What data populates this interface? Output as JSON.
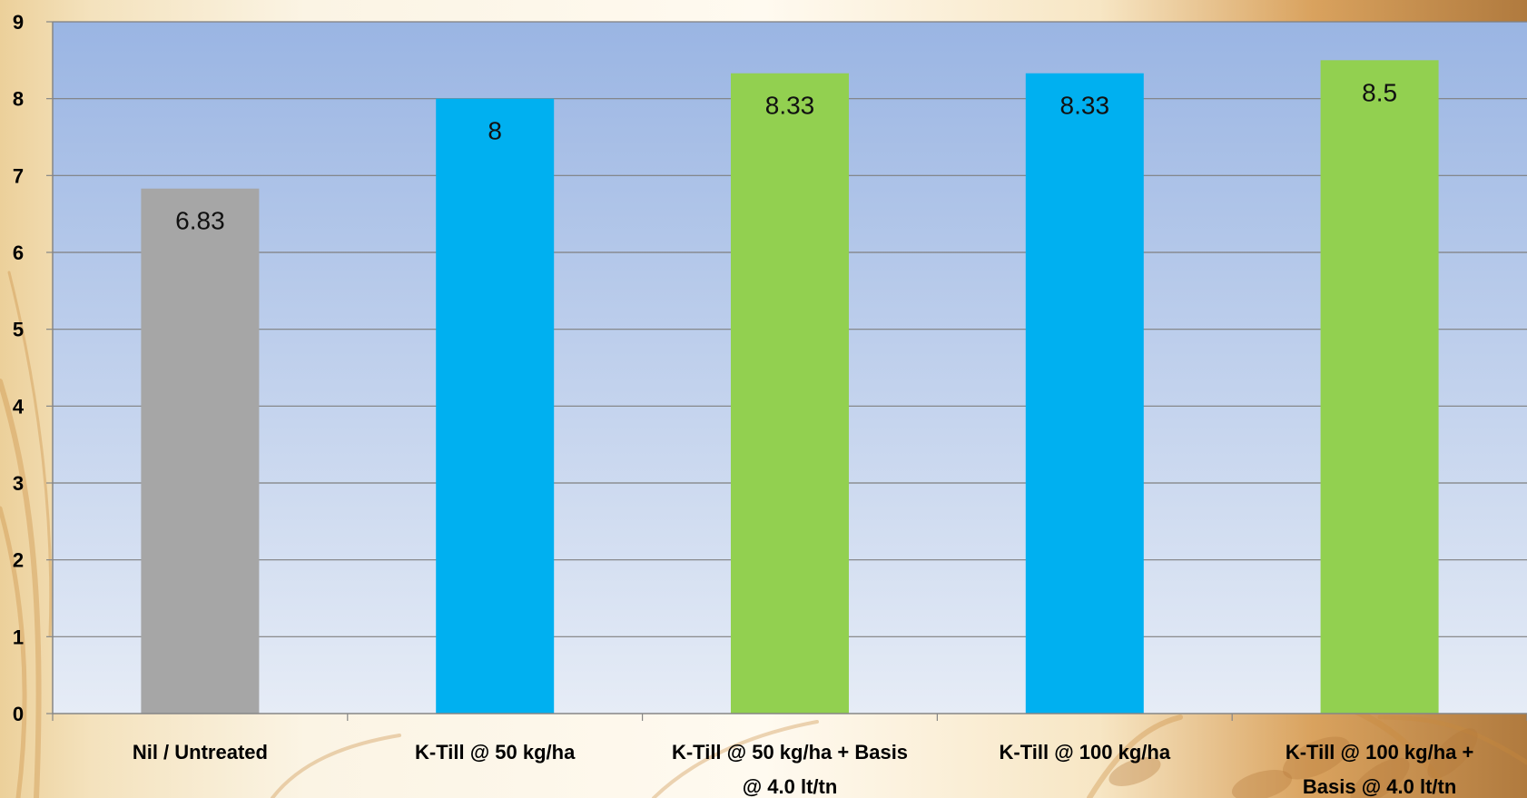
{
  "chart_data": {
    "type": "bar",
    "title": "",
    "xlabel": "",
    "ylabel": "",
    "ylim": [
      0,
      9
    ],
    "yticks": [
      0,
      1,
      2,
      3,
      4,
      5,
      6,
      7,
      8,
      9
    ],
    "grid": true,
    "legend": "none",
    "categories": [
      [
        "Nil / Untreated"
      ],
      [
        "K-Till @ 50 kg/ha"
      ],
      [
        "K-Till @ 50 kg/ha + Basis",
        "@ 4.0 lt/tn"
      ],
      [
        "K-Till @ 100 kg/ha"
      ],
      [
        "K-Till @ 100 kg/ha +",
        "Basis @ 4.0 lt/tn"
      ]
    ],
    "values": [
      6.83,
      8,
      8.33,
      8.33,
      8.5
    ],
    "data_labels": [
      "6.83",
      "8",
      "8.33",
      "8.33",
      "8.5"
    ],
    "bar_colors": [
      "#a6a6a6",
      "#00b0f0",
      "#92d050",
      "#00b0f0",
      "#92d050"
    ],
    "plot_background": [
      "#9ab5e3",
      "#e6ecf6"
    ]
  }
}
